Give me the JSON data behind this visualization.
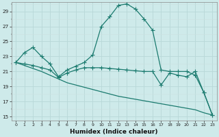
{
  "xlabel": "Humidex (Indice chaleur)",
  "bg_color": "#ceeaea",
  "grid_major_color": "#b8d8d8",
  "grid_minor_color": "#cce0e0",
  "line_color": "#1a7a6e",
  "xlim": [
    -0.5,
    23.5
  ],
  "ylim": [
    14.5,
    30.2
  ],
  "xticks": [
    0,
    1,
    2,
    3,
    4,
    5,
    6,
    7,
    8,
    9,
    10,
    11,
    12,
    13,
    14,
    15,
    16,
    17,
    18,
    19,
    20,
    21,
    22,
    23
  ],
  "yticks": [
    15,
    17,
    19,
    21,
    23,
    25,
    27,
    29
  ],
  "curve1_x": [
    0,
    1,
    2,
    3,
    4,
    5,
    6,
    7,
    8,
    9,
    10,
    11,
    12,
    13,
    14,
    15,
    16,
    17,
    18,
    19,
    20,
    21,
    22,
    23
  ],
  "curve1_y": [
    22.2,
    23.5,
    24.2,
    23.0,
    22.0,
    20.3,
    21.2,
    21.7,
    22.2,
    23.2,
    27.0,
    28.3,
    29.8,
    30.0,
    29.3,
    28.0,
    26.5,
    21.2,
    21.0,
    21.0,
    21.0,
    20.5,
    18.2,
    15.2
  ],
  "curve2_x": [
    0,
    1,
    2,
    3,
    4,
    5,
    6,
    7,
    8,
    9,
    10,
    11,
    12,
    13,
    14,
    15,
    16,
    17,
    18,
    19,
    20,
    21,
    22,
    23
  ],
  "curve2_y": [
    22.2,
    22.0,
    21.8,
    21.5,
    21.2,
    20.2,
    20.8,
    21.2,
    21.5,
    21.5,
    21.5,
    21.4,
    21.3,
    21.2,
    21.1,
    21.0,
    21.0,
    19.2,
    20.8,
    20.5,
    20.3,
    21.0,
    18.2,
    15.2
  ],
  "curve3_x": [
    0,
    1,
    2,
    3,
    4,
    5,
    6,
    7,
    8,
    9,
    10,
    11,
    12,
    13,
    14,
    15,
    16,
    17,
    18,
    19,
    20,
    21,
    22,
    23
  ],
  "curve3_y": [
    22.2,
    21.8,
    21.4,
    21.0,
    20.5,
    20.0,
    19.5,
    19.2,
    18.9,
    18.6,
    18.3,
    18.0,
    17.7,
    17.5,
    17.3,
    17.1,
    16.9,
    16.7,
    16.5,
    16.3,
    16.1,
    15.9,
    15.5,
    15.2
  ]
}
